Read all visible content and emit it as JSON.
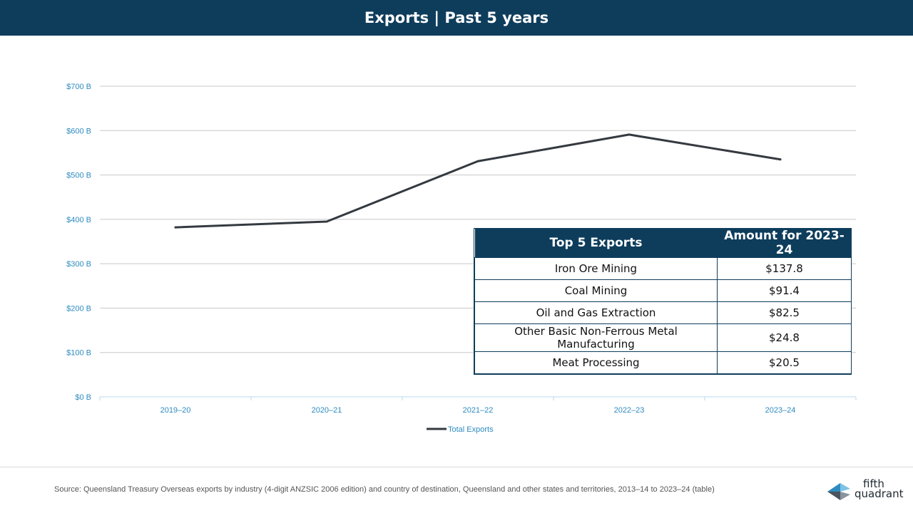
{
  "header": {
    "title": "Exports | Past 5 years"
  },
  "chart_data": {
    "type": "line",
    "categories": [
      "2019–20",
      "2020–21",
      "2021–22",
      "2022–23",
      "2023–24"
    ],
    "series": [
      {
        "name": "Total Exports",
        "values": [
          382,
          395,
          531,
          591,
          535
        ],
        "color": "#343a40"
      }
    ],
    "y_ticks": [
      "$0 B",
      "$100 B",
      "$200 B",
      "$300 B",
      "$400 B",
      "$500 B",
      "$600 B",
      "$700 B"
    ],
    "ylim": [
      0,
      700
    ],
    "grid": true,
    "legend_position": "bottom-center",
    "tick_color": "#2e8bc0"
  },
  "table": {
    "headers": [
      "Top 5 Exports",
      "Amount for 2023-24"
    ],
    "rows": [
      [
        "Iron Ore Mining",
        "$137.8"
      ],
      [
        "Coal Mining",
        "$91.4"
      ],
      [
        "Oil and Gas Extraction",
        "$82.5"
      ],
      [
        "Other Basic Non-Ferrous Metal Manufacturing",
        "$24.8"
      ],
      [
        "Meat Processing",
        "$20.5"
      ]
    ]
  },
  "footer": {
    "source": "Source: Queensland Treasury Overseas exports by industry (4-digit ANZSIC 2006 edition) and country of destination, Queensland and other states and territories, 2013–14 to 2023–24 (table)"
  },
  "logo": {
    "line1": "fifth",
    "line2": "quadrant"
  },
  "colors": {
    "header_bg": "#0e3d5c",
    "line": "#343a40",
    "axis_text": "#2e8bc0"
  }
}
